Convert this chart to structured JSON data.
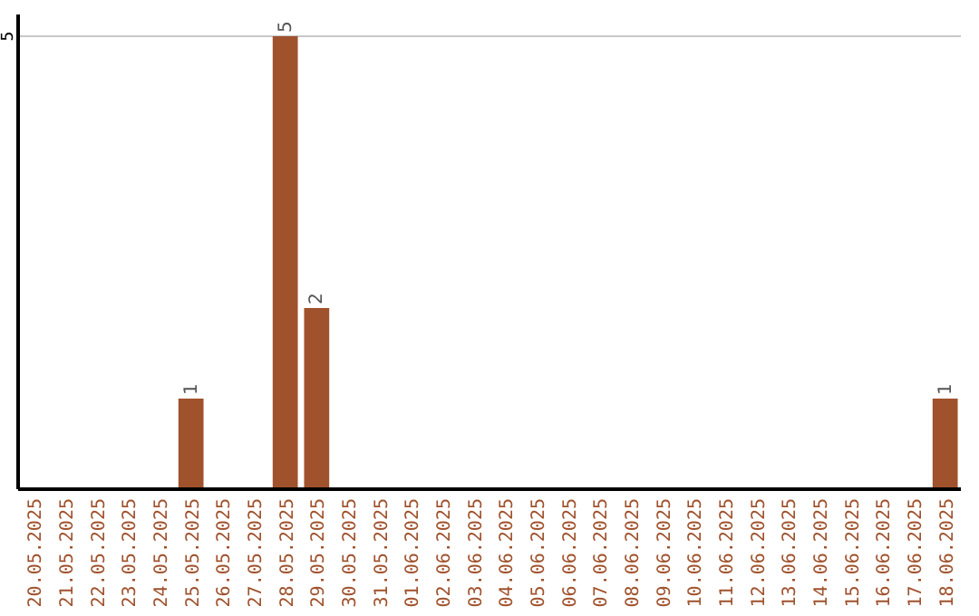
{
  "chart_data": {
    "type": "bar",
    "categories": [
      "20.05.2025",
      "21.05.2025",
      "22.05.2025",
      "23.05.2025",
      "24.05.2025",
      "25.05.2025",
      "26.05.2025",
      "27.05.2025",
      "28.05.2025",
      "29.05.2025",
      "30.05.2025",
      "31.05.2025",
      "01.06.2025",
      "02.06.2025",
      "03.06.2025",
      "04.06.2025",
      "05.06.2025",
      "06.06.2025",
      "07.06.2025",
      "08.06.2025",
      "09.06.2025",
      "10.06.2025",
      "11.06.2025",
      "12.06.2025",
      "13.06.2025",
      "14.06.2025",
      "15.06.2025",
      "16.06.2025",
      "17.06.2025",
      "18.06.2025"
    ],
    "values": [
      0,
      0,
      0,
      0,
      0,
      1,
      0,
      0,
      5,
      2,
      0,
      0,
      0,
      0,
      0,
      0,
      0,
      0,
      0,
      0,
      0,
      0,
      0,
      0,
      0,
      0,
      0,
      0,
      0,
      1
    ],
    "value_labels": [
      null,
      null,
      null,
      null,
      null,
      "1",
      null,
      null,
      "5",
      "2",
      null,
      null,
      null,
      null,
      null,
      null,
      null,
      null,
      null,
      null,
      null,
      null,
      null,
      null,
      null,
      null,
      null,
      null,
      null,
      "1"
    ],
    "color": "#a0522d",
    "ylim": [
      0,
      5.2
    ],
    "yticks": [
      5
    ],
    "grid": "y"
  }
}
